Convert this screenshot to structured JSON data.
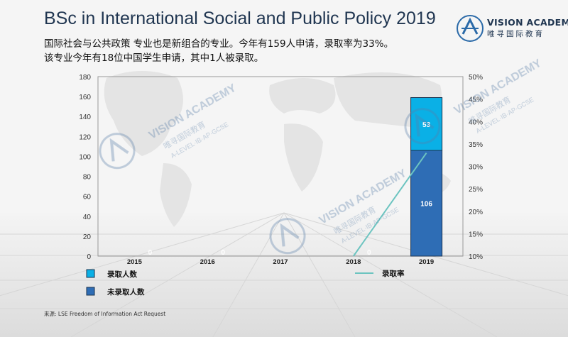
{
  "header": {
    "title": "BSc in International Social and Public Policy 2019",
    "subtitle_line1": "国际社会与公共政策 专业也是新组合的专业。今年有159人申请，录取率为33%。",
    "subtitle_line2": "该专业今年有18位中国学生申请，其中1人被录取。"
  },
  "logo": {
    "name": "VISION ACADEMY",
    "cn_name": "唯寻国际教育",
    "icon": "vision-academy-logo-icon"
  },
  "watermark": {
    "name": "VISION ACADEMY",
    "cn_name": "唯寻国际教育",
    "tagline": "A-LEVEL·IB·AP·GCSE"
  },
  "source": "来源:   LSE Freedom of Information Act Request",
  "chart_data": {
    "type": "bar",
    "stacked": true,
    "categories": [
      "2015",
      "2016",
      "2017",
      "2018",
      "2019"
    ],
    "series": [
      {
        "name": "未录取人数",
        "values": [
          0,
          0,
          0,
          0,
          106
        ],
        "color": "#2e6db5"
      },
      {
        "name": "录取人数",
        "values": [
          0,
          0,
          0,
          0,
          53
        ],
        "color": "#0ab0e6"
      }
    ],
    "line_series": {
      "name": "录取率",
      "values": [
        0.1,
        0.1,
        0.1,
        0.1,
        0.33
      ],
      "color": "#6cc4c0",
      "axis": "right"
    },
    "data_labels_first": [
      "0",
      "0",
      "",
      "0",
      "106"
    ],
    "data_labels_second": [
      "",
      "",
      "",
      "",
      "53"
    ],
    "y_left": {
      "min": 0,
      "max": 180,
      "ticks": [
        "0",
        "20",
        "40",
        "60",
        "80",
        "100",
        "120",
        "140",
        "160",
        "180"
      ]
    },
    "y_right": {
      "min": 0.1,
      "max": 0.5,
      "ticks": [
        "10%",
        "15%",
        "20%",
        "25%",
        "30%",
        "35%",
        "40%",
        "45%",
        "50%"
      ]
    },
    "legend": {
      "admitted": "录取人数",
      "rejected": "未录取人数",
      "rate": "录取率",
      "position": "bottom"
    }
  }
}
